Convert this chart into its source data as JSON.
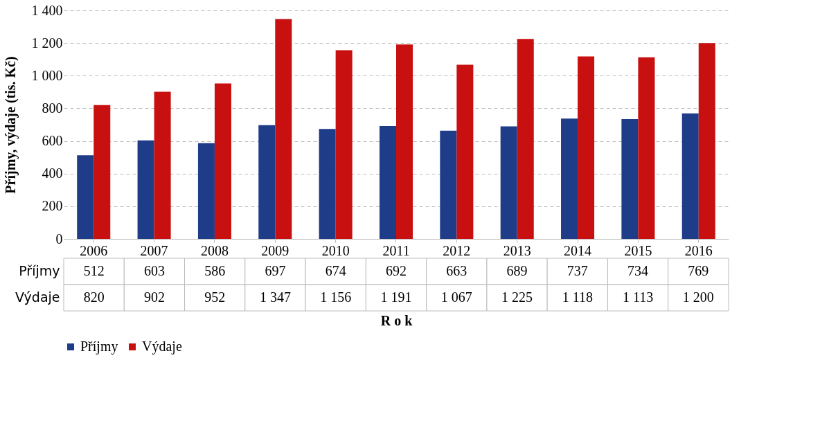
{
  "chart_data": {
    "type": "bar",
    "xlabel": "R o k",
    "ylabel": "Příjmy, výdaje (tis. Kč)",
    "categories": [
      "2006",
      "2007",
      "2008",
      "2009",
      "2010",
      "2011",
      "2012",
      "2013",
      "2014",
      "2015",
      "2016"
    ],
    "series": [
      {
        "name": "Příjmy",
        "color": "#1f3c88",
        "values": [
          512,
          603,
          586,
          697,
          674,
          692,
          663,
          689,
          737,
          734,
          769
        ],
        "value_labels": [
          "512",
          "603",
          "586",
          "697",
          "674",
          "692",
          "663",
          "689",
          "737",
          "734",
          "769"
        ]
      },
      {
        "name": "Výdaje",
        "color": "#c81010",
        "values": [
          820,
          902,
          952,
          1347,
          1156,
          1191,
          1067,
          1225,
          1118,
          1113,
          1200
        ],
        "value_labels": [
          "820",
          "902",
          "952",
          "1 347",
          "1 156",
          "1 191",
          "1 067",
          "1 225",
          "1 118",
          "1 113",
          "1 200"
        ]
      }
    ],
    "ylim": [
      0,
      1400
    ],
    "yticks": [
      0,
      200,
      400,
      600,
      800,
      {
        "value": 1000,
        "label": "1 000"
      },
      {
        "value": 1200,
        "label": "1 200"
      },
      {
        "value": 1400,
        "label": "1 400"
      }
    ],
    "grid": "y",
    "legend": "bottom"
  }
}
